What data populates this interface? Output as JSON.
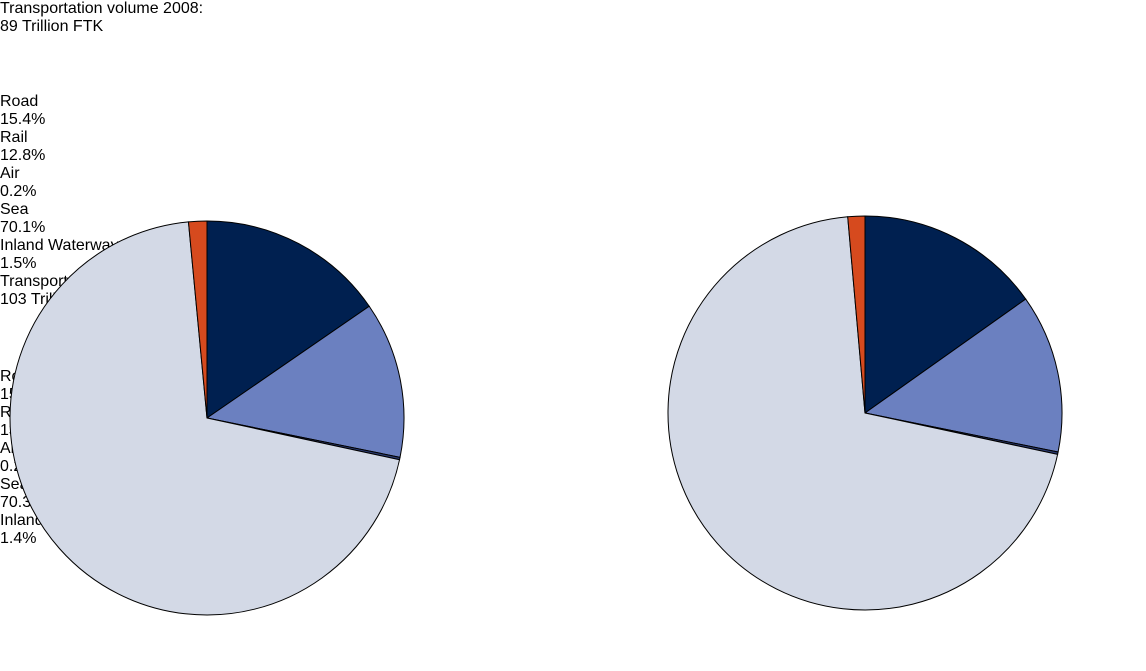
{
  "chart_data": [
    {
      "type": "pie",
      "title": "Transportation volume 2008:",
      "subtitle": "89 Trillion FTK",
      "categories": [
        "Road",
        "Rail",
        "Air",
        "Sea",
        "Inland Waterways"
      ],
      "values": [
        15.4,
        12.8,
        0.2,
        70.1,
        1.5
      ],
      "value_labels": [
        "15.4%",
        "12.8%",
        "0.2%",
        "70.1%",
        "1.5%"
      ],
      "colors": [
        "#002050",
        "#6b80c0",
        "#2a3a70",
        "#d3d9e6",
        "#d64a1e"
      ]
    },
    {
      "type": "pie",
      "title": "Transportation volume 2008:",
      "subtitle": "103 Trillion FTK",
      "categories": [
        "Road",
        "Rail",
        "Air",
        "Sea",
        "Inland Waterways"
      ],
      "values": [
        15.2,
        13.0,
        0.2,
        70.3,
        1.4
      ],
      "value_labels": [
        "15.2%",
        "13.0%",
        "0.2%",
        "70.3%",
        "1.4%"
      ],
      "colors": [
        "#002050",
        "#6b80c0",
        "#2a3a70",
        "#d3d9e6",
        "#d64a1e"
      ]
    }
  ]
}
